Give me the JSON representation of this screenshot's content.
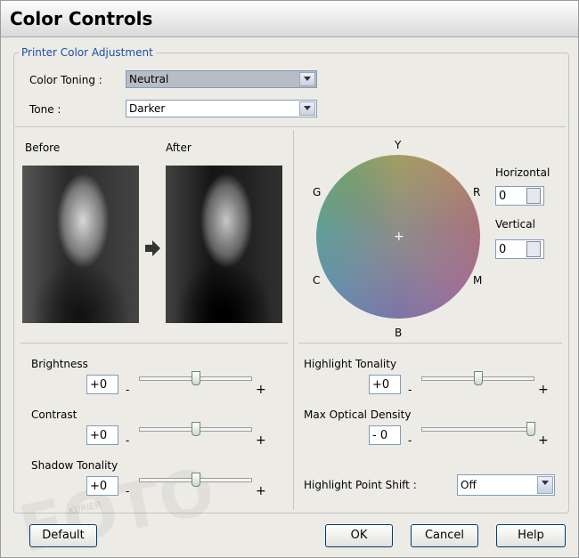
{
  "window": {
    "title": "Color Controls"
  },
  "group": {
    "title": "Printer Color Adjustment"
  },
  "color_toning": {
    "label": "Color Toning :",
    "value": "Neutral"
  },
  "tone": {
    "label": "Tone :",
    "value": "Darker"
  },
  "preview": {
    "before": "Before",
    "after": "After"
  },
  "wheel": {
    "labels": {
      "y": "Y",
      "r": "R",
      "m": "M",
      "b": "B",
      "c": "C",
      "g": "G"
    },
    "horizontal": {
      "label": "Horizontal",
      "value": "0"
    },
    "vertical": {
      "label": "Vertical",
      "value": "0"
    }
  },
  "sliders": [
    {
      "label": "Brightness",
      "value": "+0",
      "minus": "-",
      "plus": "+"
    },
    {
      "label": "Contrast",
      "value": "+0",
      "minus": "-",
      "plus": "+"
    },
    {
      "label": "Shadow Tonality",
      "value": "+0",
      "minus": "-",
      "plus": "+"
    },
    {
      "label": "Highlight Tonality",
      "value": "+0",
      "minus": "-",
      "plus": "+"
    },
    {
      "label": "Max Optical Density",
      "value": "- 0",
      "minus": "-",
      "plus": "+"
    }
  ],
  "highlight_point_shift": {
    "label": "Highlight Point Shift :",
    "value": "Off"
  },
  "watermark": {
    "main": "FOTO",
    "sub": "KURIER"
  },
  "buttons": {
    "default": "Default",
    "ok": "OK",
    "cancel": "Cancel",
    "help": "Help"
  }
}
